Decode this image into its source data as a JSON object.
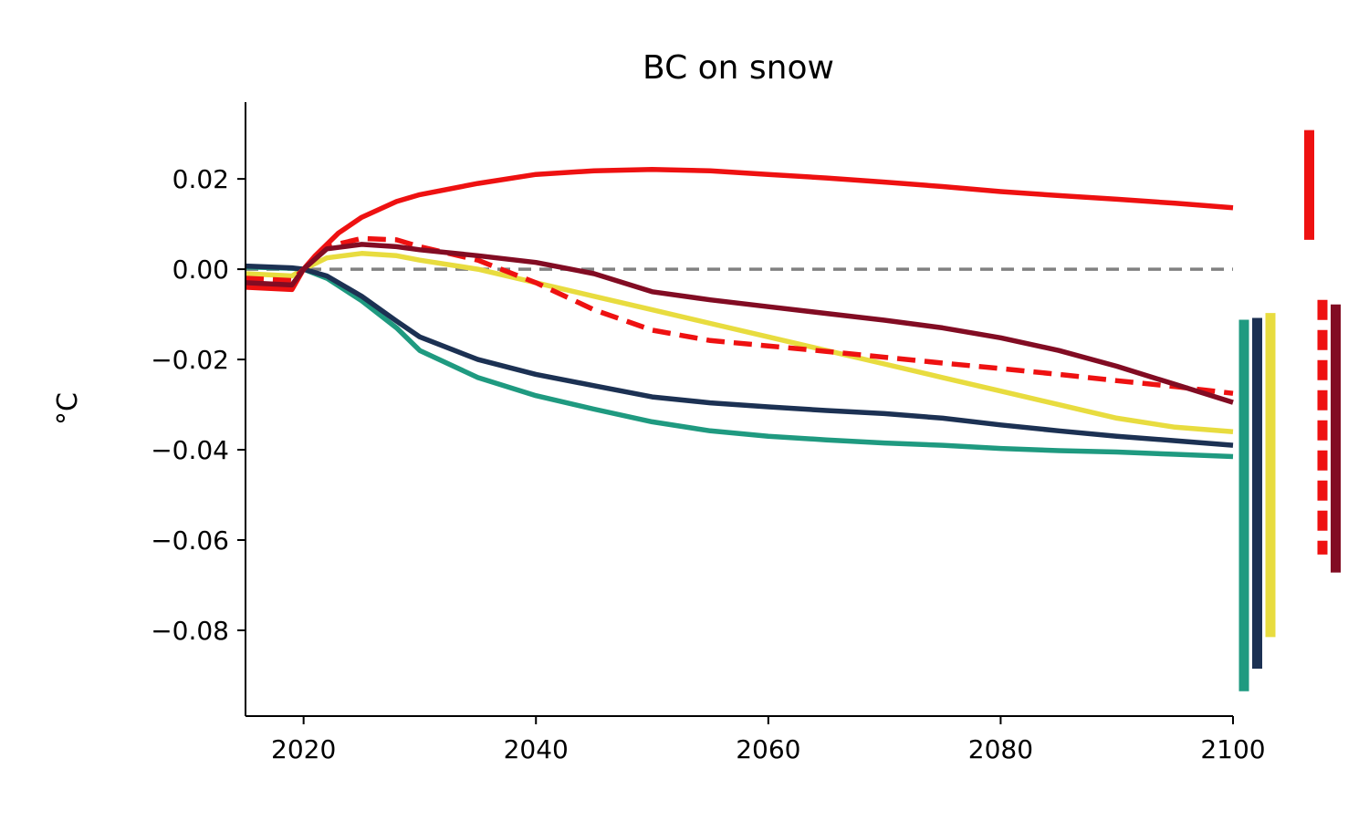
{
  "chart_data": {
    "type": "line",
    "title": "BC on snow",
    "xlabel": "",
    "ylabel": "°C",
    "xlim": [
      2015,
      2100
    ],
    "ylim": [
      -0.099,
      0.037
    ],
    "xticks": [
      2020,
      2040,
      2060,
      2080,
      2100
    ],
    "xtick_labels": [
      "2020",
      "2040",
      "2060",
      "2080",
      "2100"
    ],
    "yticks": [
      -0.08,
      -0.06,
      -0.04,
      -0.02,
      0.0,
      0.02
    ],
    "ytick_labels": [
      "−0.08",
      "−0.06",
      "−0.04",
      "−0.02",
      "0.00",
      "0.02"
    ],
    "grid": false,
    "reference_line": {
      "y": 0.0,
      "color": "#808080",
      "style": "dashed"
    },
    "series": [
      {
        "color": "#e8dc3f",
        "style": "solid",
        "x": [
          2015,
          2019,
          2020,
          2022,
          2025,
          2028,
          2030,
          2035,
          2040,
          2045,
          2050,
          2055,
          2060,
          2065,
          2070,
          2075,
          2080,
          2085,
          2090,
          2095,
          2100
        ],
        "y": [
          -0.001,
          -0.0015,
          0.0,
          0.0025,
          0.0035,
          0.003,
          0.002,
          0.0,
          -0.003,
          -0.006,
          -0.009,
          -0.012,
          -0.015,
          -0.018,
          -0.021,
          -0.024,
          -0.027,
          -0.03,
          -0.033,
          -0.035,
          -0.036
        ]
      },
      {
        "color": "#1f9a80",
        "style": "solid",
        "x": [
          2015,
          2019,
          2020,
          2022,
          2025,
          2028,
          2030,
          2035,
          2040,
          2045,
          2050,
          2055,
          2060,
          2065,
          2070,
          2075,
          2080,
          2085,
          2090,
          2095,
          2100
        ],
        "y": [
          0.0005,
          0.0002,
          0.0,
          -0.002,
          -0.007,
          -0.013,
          -0.018,
          -0.024,
          -0.028,
          -0.031,
          -0.0338,
          -0.0358,
          -0.037,
          -0.0378,
          -0.0385,
          -0.039,
          -0.0397,
          -0.0402,
          -0.0405,
          -0.041,
          -0.0415
        ]
      },
      {
        "color": "#1c3153",
        "style": "solid",
        "x": [
          2015,
          2019,
          2020,
          2022,
          2025,
          2028,
          2030,
          2035,
          2040,
          2045,
          2050,
          2055,
          2060,
          2065,
          2070,
          2075,
          2080,
          2085,
          2090,
          2095,
          2100
        ],
        "y": [
          0.0007,
          0.0003,
          0.0,
          -0.0015,
          -0.006,
          -0.0115,
          -0.015,
          -0.02,
          -0.0233,
          -0.0258,
          -0.0283,
          -0.0296,
          -0.0305,
          -0.0313,
          -0.032,
          -0.033,
          -0.0345,
          -0.0358,
          -0.037,
          -0.038,
          -0.039
        ]
      },
      {
        "color": "#ee1111",
        "style": "solid",
        "x": [
          2015,
          2019,
          2020,
          2021,
          2023,
          2025,
          2028,
          2030,
          2035,
          2040,
          2045,
          2050,
          2055,
          2060,
          2065,
          2070,
          2075,
          2080,
          2085,
          2090,
          2095,
          2100
        ],
        "y": [
          -0.004,
          -0.0045,
          0.0,
          0.003,
          0.008,
          0.0115,
          0.015,
          0.0165,
          0.019,
          0.021,
          0.0218,
          0.0221,
          0.0218,
          0.021,
          0.0202,
          0.0193,
          0.0183,
          0.0172,
          0.0163,
          0.0155,
          0.0146,
          0.0136
        ]
      },
      {
        "color": "#ee1111",
        "style": "dashed",
        "x": [
          2015,
          2019,
          2020,
          2022,
          2025,
          2028,
          2030,
          2035,
          2040,
          2045,
          2050,
          2055,
          2060,
          2065,
          2070,
          2075,
          2080,
          2085,
          2090,
          2095,
          2100
        ],
        "y": [
          -0.002,
          -0.0025,
          0.0,
          0.005,
          0.0068,
          0.0065,
          0.005,
          0.002,
          -0.003,
          -0.009,
          -0.0135,
          -0.0158,
          -0.017,
          -0.0182,
          -0.0195,
          -0.0208,
          -0.022,
          -0.0233,
          -0.0247,
          -0.026,
          -0.0275
        ]
      },
      {
        "color": "#820c23",
        "style": "solid",
        "x": [
          2015,
          2019,
          2020,
          2022,
          2025,
          2028,
          2030,
          2035,
          2040,
          2043,
          2045,
          2050,
          2055,
          2060,
          2065,
          2070,
          2075,
          2080,
          2085,
          2090,
          2095,
          2100
        ],
        "y": [
          -0.003,
          -0.0035,
          0.0,
          0.0045,
          0.0055,
          0.005,
          0.0043,
          0.003,
          0.0015,
          0.0,
          -0.001,
          -0.005,
          -0.0068,
          -0.0083,
          -0.0098,
          -0.0113,
          -0.013,
          -0.0152,
          -0.018,
          -0.0215,
          -0.0255,
          -0.0295
        ]
      }
    ],
    "range_bars": [
      {
        "color": "#1f9a80",
        "style": "solid",
        "low": -0.0935,
        "high": -0.0112
      },
      {
        "color": "#1c3153",
        "style": "solid",
        "low": -0.0885,
        "high": -0.0108
      },
      {
        "color": "#e8dc3f",
        "style": "solid",
        "low": -0.0815,
        "high": -0.0097
      },
      {
        "color": "#ee1111",
        "style": "solid",
        "low": 0.0065,
        "high": 0.0308
      },
      {
        "color": "#ee1111",
        "style": "dashed",
        "low": -0.0632,
        "high": -0.0068
      },
      {
        "color": "#820c23",
        "style": "solid",
        "low": -0.0672,
        "high": -0.0078
      }
    ]
  }
}
